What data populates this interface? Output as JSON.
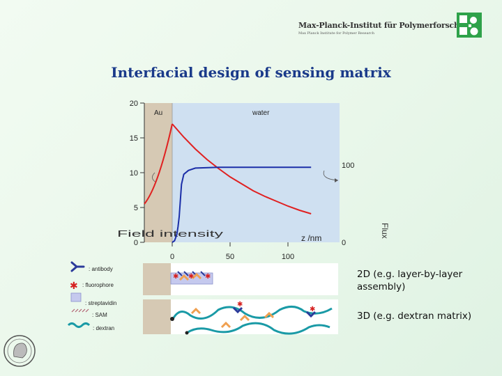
{
  "header": {
    "institute_name": "Max-Planck-Institut für Polymerforschung",
    "institute_subtitle": "Max Planck Institute for Polymer Research",
    "logo_icon": "mpip-logo-icon",
    "accent_color": "#2fa24a"
  },
  "title": "Interfacial design of sensing matrix",
  "chart_data": {
    "type": "line",
    "region_labels": [
      "Au",
      "water"
    ],
    "xlabel": "z /nm",
    "x_ticks": [
      0,
      50,
      100
    ],
    "xlim": [
      0,
      120
    ],
    "left_axis": {
      "label": "Field intensity",
      "ticks": [
        0,
        5,
        10,
        15,
        20
      ],
      "ylim": [
        0,
        20
      ]
    },
    "right_axis": {
      "label": "Flux",
      "ticks": [
        0,
        100
      ],
      "ylim": [
        0,
        100
      ]
    },
    "series": [
      {
        "axis": "left",
        "color": "#e02020",
        "x": [
          0,
          10,
          20,
          30,
          40,
          50,
          60,
          70,
          80,
          90,
          100,
          110,
          120
        ],
        "values": [
          17,
          15.1,
          13.4,
          11.9,
          10.6,
          9.4,
          8.4,
          7.4,
          6.6,
          5.9,
          5.2,
          4.6,
          4.1
        ]
      },
      {
        "axis": "right",
        "color": "#1b2ea8",
        "x": [
          0,
          2,
          4,
          5,
          6,
          8,
          10,
          14,
          20,
          40,
          60,
          80,
          100,
          120
        ],
        "values": [
          0,
          2,
          10,
          20,
          33,
          75,
          88,
          93,
          96,
          97,
          97,
          97,
          97,
          97
        ]
      }
    ]
  },
  "legend": [
    {
      "icon": "antibody-icon",
      "label": ": antibody"
    },
    {
      "icon": "fluorophore-icon",
      "label": ": fluorophore"
    },
    {
      "icon": "streptavidin-icon",
      "label": ": streptavidin"
    },
    {
      "icon": "sam-icon",
      "label": ": SAM"
    },
    {
      "icon": "dextran-icon",
      "label": ": dextran"
    }
  ],
  "architectures": [
    {
      "label": "2D (e.g. layer-by-layer assembly)"
    },
    {
      "label": "3D (e.g. dextran matrix)"
    }
  ],
  "footer": {
    "seal_icon": "minerva-seal-icon"
  }
}
